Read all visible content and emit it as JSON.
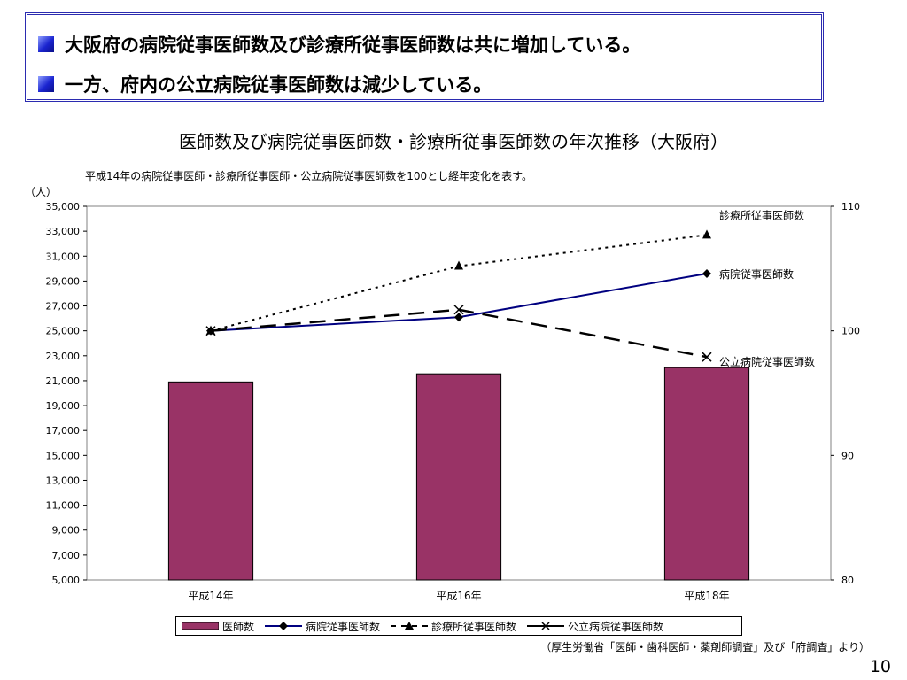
{
  "header": {
    "line1": "大阪府の病院従事医師数及び診療所従事医師数は共に増加している。",
    "line2": "一方、府内の公立病院従事医師数は減少している。"
  },
  "chart_title": "医師数及び病院従事医師数・診療所従事医師数の年次推移（大阪府）",
  "chart_subtitle": "平成14年の病院従事医師・診療所従事医師・公立病院従事医師数を100とし経年変化を表す。",
  "unit_label": "（人）",
  "source_note": "（厚生労働省「医師・歯科医師・薬剤師調査」及び「府調査」より）",
  "page_number": "10",
  "colors": {
    "bar": "#993366",
    "hospital_line": "#000080",
    "header_border": "#2b2bb0"
  },
  "chart_data": {
    "type": "bar+line",
    "categories": [
      "平成14年",
      "平成16年",
      "平成18年"
    ],
    "left_axis": {
      "ylim": [
        5000,
        35000
      ],
      "ticks": [
        "5,000",
        "7,000",
        "9,000",
        "11,000",
        "13,000",
        "15,000",
        "17,000",
        "19,000",
        "21,000",
        "23,000",
        "25,000",
        "27,000",
        "29,000",
        "31,000",
        "33,000",
        "35,000"
      ]
    },
    "right_axis": {
      "ylim": [
        80,
        110
      ],
      "ticks": [
        "80",
        "90",
        "100",
        "110"
      ]
    },
    "series": [
      {
        "name": "医師数",
        "kind": "bar",
        "axis": "left",
        "values": [
          20900,
          21550,
          22050
        ]
      },
      {
        "name": "病院従事医師数",
        "kind": "line",
        "axis": "right",
        "marker": "diamond",
        "style": "solid",
        "values": [
          100,
          101.1,
          104.6
        ]
      },
      {
        "name": "診療所従事医師数",
        "kind": "line",
        "axis": "right",
        "marker": "triangle",
        "style": "dotted",
        "values": [
          100,
          105.2,
          107.7
        ]
      },
      {
        "name": "公立病院従事医師数",
        "kind": "line",
        "axis": "right",
        "marker": "x",
        "style": "dashed",
        "values": [
          100,
          101.7,
          97.9
        ]
      }
    ],
    "annotations": [
      "診療所従事医師数",
      "病院従事医師数",
      "公立病院従事医師数"
    ],
    "legend": "bottom",
    "grid": false
  }
}
